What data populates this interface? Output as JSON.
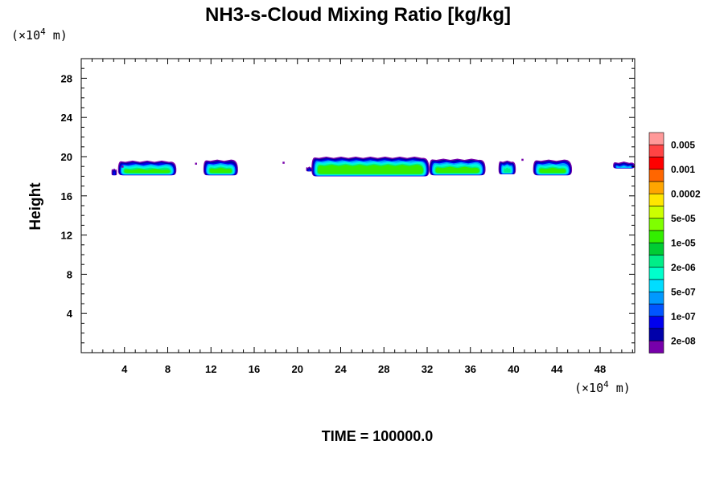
{
  "chart_data": {
    "type": "heatmap",
    "title": "NH3-s-Cloud Mixing Ratio [kg/kg]",
    "ylabel": "Height",
    "x_unit": {
      "prefix": "(×10",
      "exp": "4",
      "suffix": " m)"
    },
    "y_unit": {
      "prefix": "(×10",
      "exp": "4",
      "suffix": " m)"
    },
    "xlim": [
      0,
      51.2
    ],
    "ylim": [
      0,
      30
    ],
    "x_ticks": [
      4,
      8,
      12,
      16,
      20,
      24,
      28,
      32,
      36,
      40,
      44,
      48
    ],
    "y_ticks": [
      4,
      8,
      12,
      16,
      20,
      24,
      28
    ],
    "colorbar": {
      "labels": [
        "0.005",
        "0.001",
        "0.0002",
        "5e-05",
        "1e-05",
        "2e-06",
        "5e-07",
        "1e-07",
        "2e-08"
      ],
      "colors": [
        "#ff9999",
        "#ff4444",
        "#ff0000",
        "#ff6600",
        "#ffa500",
        "#ffe600",
        "#ccff00",
        "#7fff00",
        "#33ee00",
        "#00cc33",
        "#00ee88",
        "#00ffcc",
        "#00ddff",
        "#0099ff",
        "#0055ff",
        "#0000ee",
        "#0000aa",
        "#7700aa"
      ]
    },
    "cloud_cells": [
      {
        "x0": 3.4,
        "x1": 8.8,
        "base": 18.1,
        "top": 19.6,
        "core": "#33ee00"
      },
      {
        "x0": 11.3,
        "x1": 14.5,
        "base": 18.1,
        "top": 19.7,
        "core": "#33ee00"
      },
      {
        "x0": 21.3,
        "x1": 32.2,
        "base": 18.0,
        "top": 20.0,
        "core": "#33ee00"
      },
      {
        "x0": 32.2,
        "x1": 37.4,
        "base": 18.1,
        "top": 19.8,
        "core": "#33ee00"
      },
      {
        "x0": 38.6,
        "x1": 40.2,
        "base": 18.2,
        "top": 19.6,
        "core": "#00ee88"
      },
      {
        "x0": 41.8,
        "x1": 45.4,
        "base": 18.1,
        "top": 19.7,
        "core": "#33ee00"
      },
      {
        "x0": 49.2,
        "x1": 51.2,
        "base": 18.8,
        "top": 19.5,
        "core": "#00ddff"
      },
      {
        "x0": 2.8,
        "x1": 3.3,
        "base": 18.1,
        "top": 18.8,
        "core": "#00ee88"
      },
      {
        "x0": 20.8,
        "x1": 21.4,
        "base": 18.5,
        "top": 19.0,
        "core": "#00ddff"
      }
    ],
    "specks": [
      {
        "x": 10.6,
        "y": 19.3
      },
      {
        "x": 18.7,
        "y": 19.4
      },
      {
        "x": 3.8,
        "y": 19.0
      },
      {
        "x": 40.8,
        "y": 19.7
      }
    ]
  },
  "footer": {
    "time_label": "TIME = 100000.0"
  }
}
